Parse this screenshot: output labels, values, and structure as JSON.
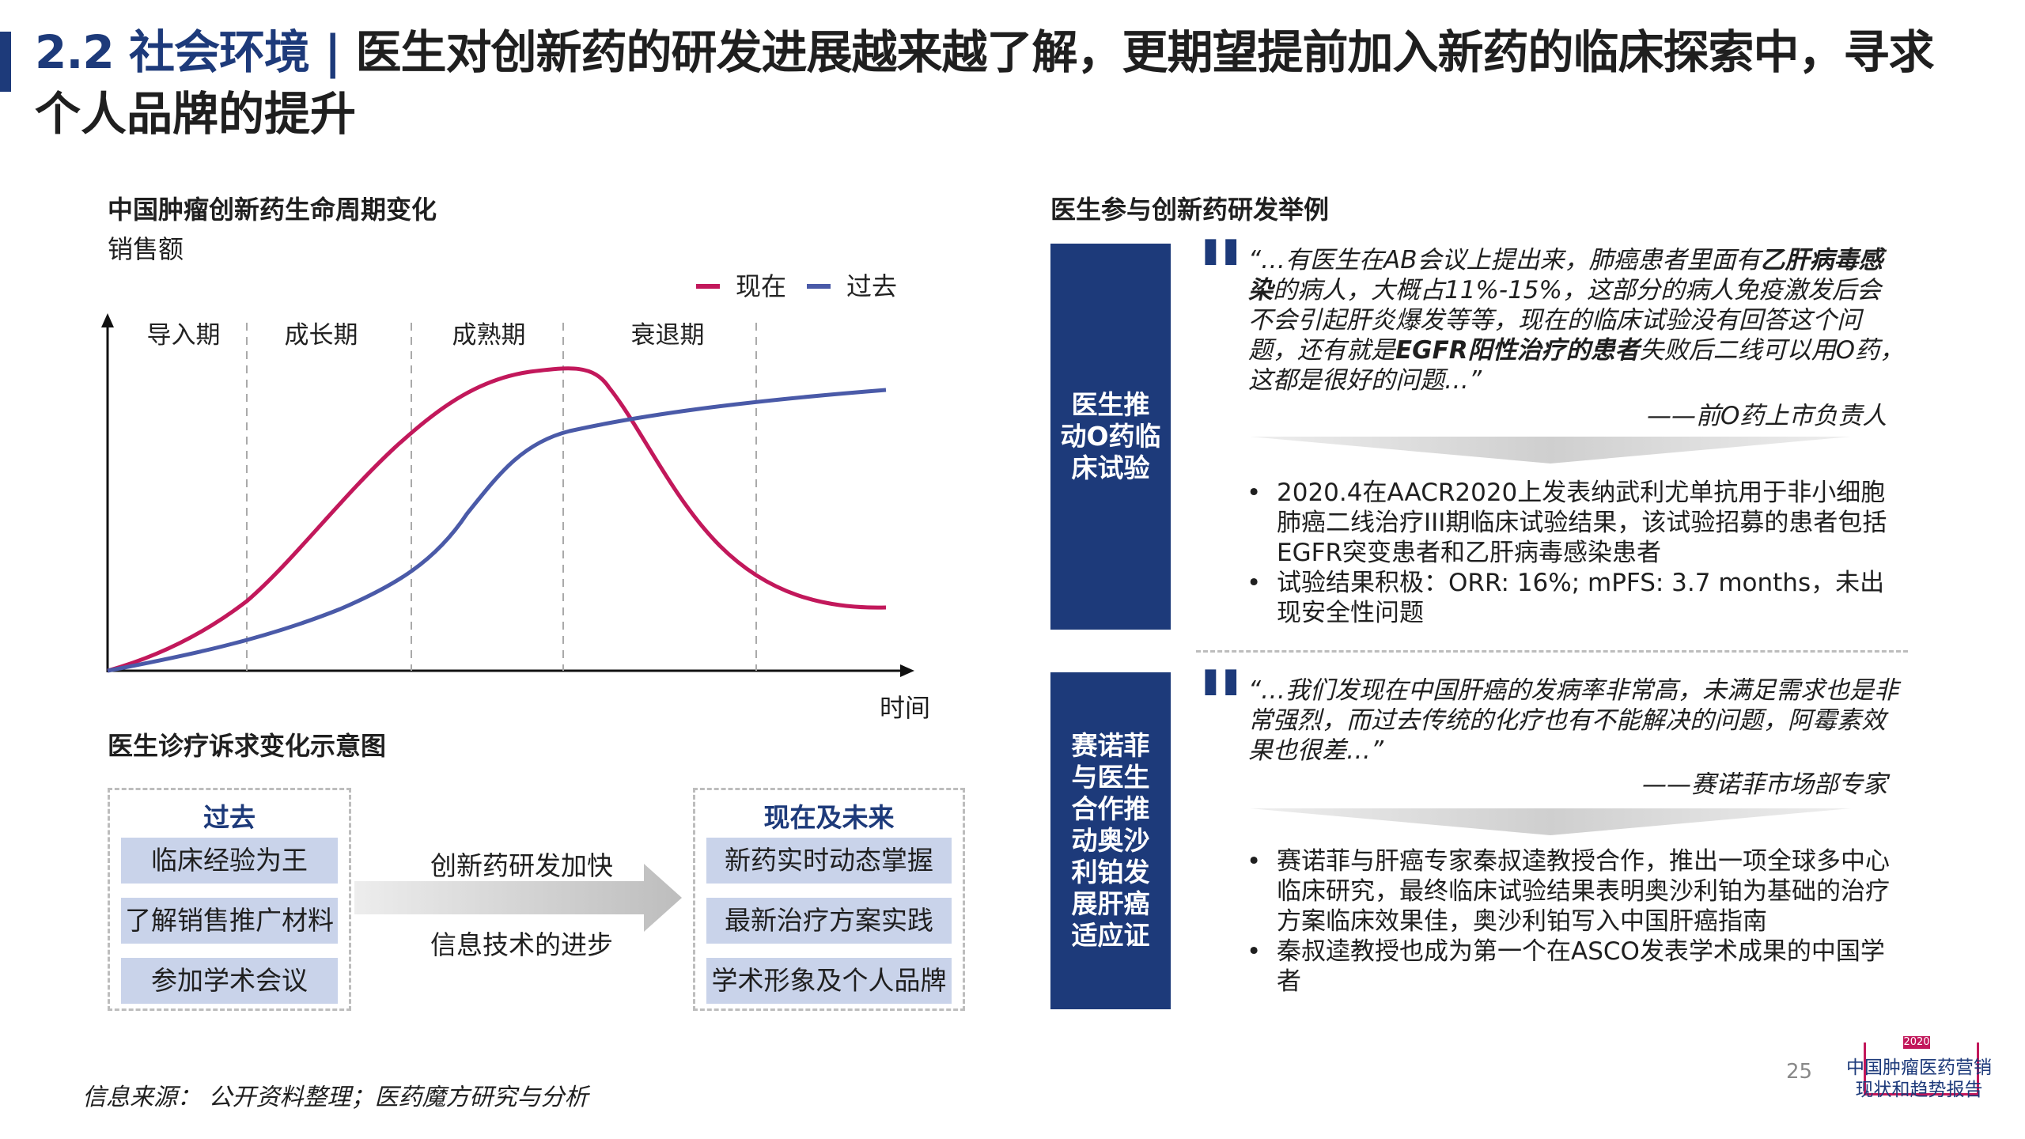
{
  "header": {
    "section_number": "2.2 社会环境",
    "separator": "|",
    "title_part1": "医生对创新药的研发进展越来越了解，更期望提前加入新药的临床探索中，寻求",
    "title_part2": "个人品牌的提升"
  },
  "lifecycle": {
    "heading": "中国肿瘤创新药生命周期变化",
    "ylabel": "销售额"
  },
  "chart_data": {
    "type": "line",
    "title": "中国肿瘤创新药生命周期变化",
    "ylabel": "销售额",
    "xlabel": "时间",
    "phases": [
      "导入期",
      "成长期",
      "成熟期",
      "衰退期"
    ],
    "legend_position": "top-right",
    "x_scale": "schematic",
    "series": [
      {
        "name": "现在",
        "color": "#c2185b"
      },
      {
        "name": "过去",
        "color": "#4a5aa8"
      }
    ]
  },
  "compare": {
    "heading": "医生诊疗诉求变化示意图",
    "past": {
      "title": "过去",
      "items": [
        "临床经验为王",
        "了解销售推广材料",
        "参加学术会议"
      ]
    },
    "arrow_top": "创新药研发加快",
    "arrow_bottom": "信息技术的进步",
    "future": {
      "title": "现在及未来",
      "items": [
        "新药实时动态掌握",
        "最新治疗方案实践",
        "学术形象及个人品牌"
      ]
    }
  },
  "cases": {
    "heading": "医生参与创新药研发举例",
    "case1": {
      "label": "医生推动O药临床试验",
      "quote_mark": "\"",
      "quote_a": "“…有医生在AB会议上提出来，肺癌患者里面有",
      "quote_b": "乙肝病毒感染",
      "quote_c": "的病人，大概占11%-15%，这部分的病人免疫激发后会不会引起肝炎爆发等等，现在的临床试验没有回答这个问题，还有就是",
      "quote_d": "EGFR阳性治疗的患者",
      "quote_e": "失败后二线可以用O药，这都是很好的问题…”",
      "attribution": "——前O药上市负责人",
      "bullets": [
        "2020.4在AACR2020上发表纳武利尤单抗用于非小细胞肺癌二线治疗III期临床试验结果，该试验招募的患者包括EGFR突变患者和乙肝病毒感染患者",
        "试验结果积极：ORR: 16%; mPFS: 3.7 months，未出现安全性问题"
      ]
    },
    "case2": {
      "label": "赛诺菲与医生合作推动奥沙利铂发展肝癌适应证",
      "quote_mark": "\"",
      "quote": "“…我们发现在中国肝癌的发病率非常高，未满足需求也是非常强烈，而过去传统的化疗也有不能解决的问题，阿霉素效果也很差…”",
      "attribution": "——赛诺菲市场部专家",
      "bullets": [
        "赛诺菲与肝癌专家秦叔逵教授合作，推出一项全球多中心临床研究，最终临床试验结果表明奥沙利铂为基础的治疗方案临床效果佳，奥沙利铂写入中国肝癌指南",
        "秦叔逵教授也成为第一个在ASCO发表学术成果的中国学者"
      ]
    }
  },
  "footer": {
    "source": "信息来源： 公开资料整理；医药魔方研究与分析",
    "page_number": "25",
    "logo_year": "2020",
    "logo_line1": "中国肿瘤医药营销",
    "logo_line2": "现状和趋势报告"
  }
}
